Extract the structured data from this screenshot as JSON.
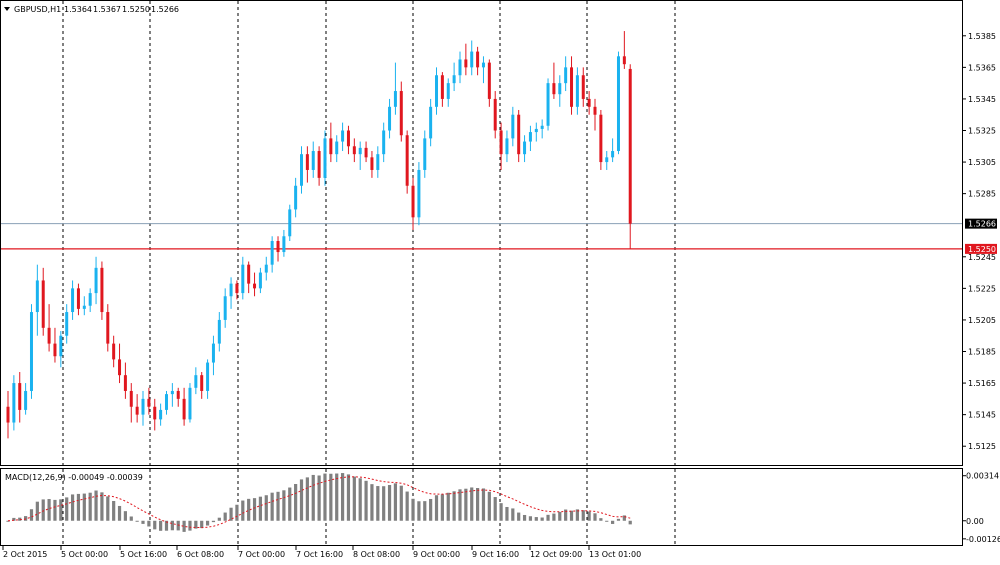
{
  "chart_data": [
    {
      "type": "candlestick",
      "header": {
        "symbol": "GBPUSD,H1",
        "ohlc": [
          "1.5364",
          "1.5367",
          "1.5250",
          "1.5266"
        ]
      },
      "ylim": [
        1.5115,
        1.5395
      ],
      "y_ticks": [
        "1.5385",
        "1.5365",
        "1.5345",
        "1.5325",
        "1.5305",
        "1.5285",
        "1.5245",
        "1.5225",
        "1.5205",
        "1.5185",
        "1.5165",
        "1.5145",
        "1.5125"
      ],
      "x_ticks": [
        "2 Oct 2015",
        "5 Oct 00:00",
        "5 Oct 16:00",
        "6 Oct 08:00",
        "7 Oct 00:00",
        "7 Oct 16:00",
        "8 Oct 08:00",
        "9 Oct 00:00",
        "9 Oct 16:00",
        "12 Oct 09:00",
        "13 Oct 01:00"
      ],
      "price_lines": [
        {
          "label": "1.5266",
          "value": 1.5266
        },
        {
          "label": "1.5250",
          "value": 1.525
        }
      ],
      "colors": {
        "up": "#1ab2ef",
        "down": "#e0171f",
        "bid_line": "#8aa0b6",
        "level_line": "#e0171f",
        "label_bg": "#000000"
      },
      "candles": [
        [
          1.515,
          1.516,
          1.513,
          1.514
        ],
        [
          1.514,
          1.517,
          1.5135,
          1.5165
        ],
        [
          1.5165,
          1.5172,
          1.514,
          1.5148
        ],
        [
          1.5148,
          1.5165,
          1.5145,
          1.516
        ],
        [
          1.516,
          1.5215,
          1.5155,
          1.521
        ],
        [
          1.521,
          1.524,
          1.5195,
          1.523
        ],
        [
          1.523,
          1.5238,
          1.5195,
          1.52
        ],
        [
          1.52,
          1.5215,
          1.5185,
          1.519
        ],
        [
          1.519,
          1.52,
          1.5178,
          1.5182
        ],
        [
          1.5182,
          1.5198,
          1.5175,
          1.5195
        ],
        [
          1.5195,
          1.5215,
          1.519,
          1.521
        ],
        [
          1.521,
          1.523,
          1.5205,
          1.5225
        ],
        [
          1.5225,
          1.5228,
          1.5208,
          1.5212
        ],
        [
          1.5212,
          1.522,
          1.5208,
          1.5214
        ],
        [
          1.5214,
          1.5225,
          1.521,
          1.5222
        ],
        [
          1.5222,
          1.5245,
          1.5215,
          1.5238
        ],
        [
          1.5238,
          1.5242,
          1.5205,
          1.521
        ],
        [
          1.521,
          1.5215,
          1.5185,
          1.519
        ],
        [
          1.519,
          1.5195,
          1.5175,
          1.518
        ],
        [
          1.518,
          1.519,
          1.5165,
          1.517
        ],
        [
          1.517,
          1.5178,
          1.5155,
          1.516
        ],
        [
          1.516,
          1.5165,
          1.514,
          1.515
        ],
        [
          1.515,
          1.5158,
          1.514,
          1.5145
        ],
        [
          1.5145,
          1.516,
          1.5138,
          1.5155
        ],
        [
          1.5155,
          1.5162,
          1.5145,
          1.515
        ],
        [
          1.515,
          1.5155,
          1.5135,
          1.5142
        ],
        [
          1.5142,
          1.5152,
          1.5138,
          1.5148
        ],
        [
          1.5148,
          1.516,
          1.5145,
          1.5158
        ],
        [
          1.5158,
          1.5165,
          1.515,
          1.516
        ],
        [
          1.516,
          1.5162,
          1.515,
          1.5155
        ],
        [
          1.5155,
          1.5162,
          1.5138,
          1.5142
        ],
        [
          1.5142,
          1.5165,
          1.514,
          1.5162
        ],
        [
          1.5162,
          1.5175,
          1.5158,
          1.517
        ],
        [
          1.517,
          1.5172,
          1.5155,
          1.516
        ],
        [
          1.516,
          1.518,
          1.5155,
          1.5178
        ],
        [
          1.5178,
          1.5195,
          1.517,
          1.519
        ],
        [
          1.519,
          1.521,
          1.5185,
          1.5205
        ],
        [
          1.5205,
          1.5225,
          1.52,
          1.522
        ],
        [
          1.522,
          1.5232,
          1.5212,
          1.5228
        ],
        [
          1.5228,
          1.523,
          1.5218,
          1.5222
        ],
        [
          1.5222,
          1.5245,
          1.5218,
          1.524
        ],
        [
          1.524,
          1.5242,
          1.5222,
          1.5228
        ],
        [
          1.5228,
          1.5235,
          1.522,
          1.5225
        ],
        [
          1.5225,
          1.5238,
          1.5222,
          1.5235
        ],
        [
          1.5235,
          1.5245,
          1.523,
          1.524
        ],
        [
          1.524,
          1.5258,
          1.5235,
          1.5255
        ],
        [
          1.5255,
          1.5258,
          1.5242,
          1.5248
        ],
        [
          1.5248,
          1.5262,
          1.5245,
          1.5258
        ],
        [
          1.5258,
          1.5278,
          1.5255,
          1.5275
        ],
        [
          1.5275,
          1.5295,
          1.527,
          1.529
        ],
        [
          1.529,
          1.5315,
          1.5285,
          1.531
        ],
        [
          1.531,
          1.5315,
          1.5292,
          1.53
        ],
        [
          1.53,
          1.5318,
          1.5295,
          1.5312
        ],
        [
          1.5312,
          1.5315,
          1.529,
          1.5295
        ],
        [
          1.5295,
          1.5325,
          1.529,
          1.532
        ],
        [
          1.532,
          1.533,
          1.5305,
          1.531
        ],
        [
          1.531,
          1.5322,
          1.5305,
          1.5318
        ],
        [
          1.5318,
          1.533,
          1.5312,
          1.5325
        ],
        [
          1.5325,
          1.5328,
          1.531,
          1.5315
        ],
        [
          1.5315,
          1.532,
          1.5305,
          1.531
        ],
        [
          1.531,
          1.5318,
          1.53,
          1.5314
        ],
        [
          1.5314,
          1.5318,
          1.5305,
          1.5308
        ],
        [
          1.5308,
          1.5312,
          1.5295,
          1.53
        ],
        [
          1.53,
          1.5315,
          1.5295,
          1.531
        ],
        [
          1.531,
          1.533,
          1.5305,
          1.5325
        ],
        [
          1.5325,
          1.5345,
          1.532,
          1.534
        ],
        [
          1.534,
          1.5368,
          1.5335,
          1.535
        ],
        [
          1.535,
          1.5356,
          1.5318,
          1.5322
        ],
        [
          1.5322,
          1.5325,
          1.5285,
          1.529
        ],
        [
          1.529,
          1.5295,
          1.5262,
          1.527
        ],
        [
          1.527,
          1.5305,
          1.5265,
          1.53
        ],
        [
          1.53,
          1.5325,
          1.5295,
          1.532
        ],
        [
          1.532,
          1.5345,
          1.5315,
          1.534
        ],
        [
          1.534,
          1.5365,
          1.5335,
          1.536
        ],
        [
          1.536,
          1.5362,
          1.534,
          1.5345
        ],
        [
          1.5345,
          1.5358,
          1.534,
          1.5355
        ],
        [
          1.5355,
          1.5368,
          1.535,
          1.536
        ],
        [
          1.536,
          1.5375,
          1.5355,
          1.537
        ],
        [
          1.537,
          1.538,
          1.536,
          1.5365
        ],
        [
          1.5365,
          1.5382,
          1.536,
          1.5375
        ],
        [
          1.5375,
          1.5378,
          1.536,
          1.5365
        ],
        [
          1.5365,
          1.5372,
          1.5355,
          1.5368
        ],
        [
          1.5368,
          1.537,
          1.534,
          1.5345
        ],
        [
          1.5345,
          1.535,
          1.532,
          1.5325
        ],
        [
          1.5325,
          1.533,
          1.53,
          1.531
        ],
        [
          1.531,
          1.5325,
          1.5305,
          1.532
        ],
        [
          1.532,
          1.534,
          1.5315,
          1.5335
        ],
        [
          1.5335,
          1.5338,
          1.5305,
          1.531
        ],
        [
          1.531,
          1.5322,
          1.5305,
          1.5318
        ],
        [
          1.5318,
          1.5328,
          1.5312,
          1.5324
        ],
        [
          1.5324,
          1.533,
          1.5318,
          1.5326
        ],
        [
          1.5326,
          1.5332,
          1.532,
          1.5328
        ],
        [
          1.5328,
          1.5358,
          1.5325,
          1.5355
        ],
        [
          1.5355,
          1.5368,
          1.5345,
          1.5348
        ],
        [
          1.5348,
          1.536,
          1.534,
          1.5355
        ],
        [
          1.5355,
          1.5372,
          1.535,
          1.5365
        ],
        [
          1.5365,
          1.5372,
          1.5335,
          1.534
        ],
        [
          1.534,
          1.5365,
          1.5335,
          1.536
        ],
        [
          1.536,
          1.5365,
          1.534,
          1.5345
        ],
        [
          1.5345,
          1.535,
          1.5335,
          1.534
        ],
        [
          1.534,
          1.5345,
          1.5325,
          1.5335
        ],
        [
          1.5335,
          1.5338,
          1.53,
          1.5305
        ],
        [
          1.5305,
          1.5312,
          1.53,
          1.5308
        ],
        [
          1.5308,
          1.532,
          1.5305,
          1.5312
        ],
        [
          1.5312,
          1.5375,
          1.531,
          1.5372
        ],
        [
          1.5372,
          1.5388,
          1.5364,
          1.5367
        ],
        [
          1.5364,
          1.5367,
          1.525,
          1.5266
        ]
      ],
      "macd": {
        "label": "MACD(12,26,9) -0.00049 -0.00039",
        "ylim": [
          -0.00155,
          0.0034
        ],
        "y_ticks": [
          "0.00314",
          "0.00",
          "-0.00126"
        ],
        "colors": {
          "histogram": "#808080",
          "signal": "#e0171f"
        }
      }
    }
  ]
}
